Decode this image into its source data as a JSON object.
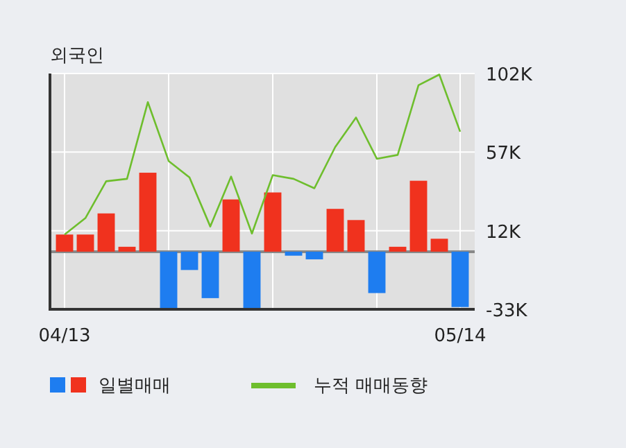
{
  "chart_data": {
    "type": "bar",
    "title": "외국인",
    "categories": [
      "04/13",
      null,
      null,
      null,
      null,
      null,
      null,
      null,
      null,
      null,
      null,
      null,
      null,
      null,
      null,
      null,
      null,
      null,
      null,
      "05/14"
    ],
    "series": [
      {
        "name": "일별매매",
        "colors": [
          "#f0321e",
          "#f0321e",
          "#f0321e",
          "#f0321e",
          "#f0321e",
          "#1e7df0",
          "#1e7df0",
          "#1e7df0",
          "#f0321e",
          "#1e7df0",
          "#f0321e",
          "#1e7df0",
          "#1e7df0",
          "#f0321e",
          "#f0321e",
          "#1e7df0",
          "#f0321e",
          "#f0321e",
          "#f0321e",
          "#1e7df0"
        ],
        "values": [
          9800,
          9800,
          21900,
          2800,
          45200,
          -32500,
          -10500,
          -26600,
          29900,
          -32500,
          33900,
          -2300,
          -4400,
          24500,
          18100,
          -23700,
          2800,
          40600,
          7400,
          -31700
        ]
      },
      {
        "name": "누적 매매동향",
        "type": "line",
        "color": "#6ebe2d",
        "values": [
          9800,
          19200,
          40300,
          41700,
          85600,
          51900,
          42500,
          14400,
          43000,
          10400,
          43800,
          41700,
          36300,
          59900,
          76800,
          53200,
          55400,
          95300,
          101400,
          68700
        ]
      }
    ],
    "ylim": [
      -33000,
      102000
    ],
    "yticks": [
      {
        "value": 102000,
        "label": "102K"
      },
      {
        "value": 57000,
        "label": "57K"
      },
      {
        "value": 12000,
        "label": "12K"
      },
      {
        "value": -33000,
        "label": "-33K"
      }
    ],
    "grid": true,
    "legend": "bottom"
  }
}
